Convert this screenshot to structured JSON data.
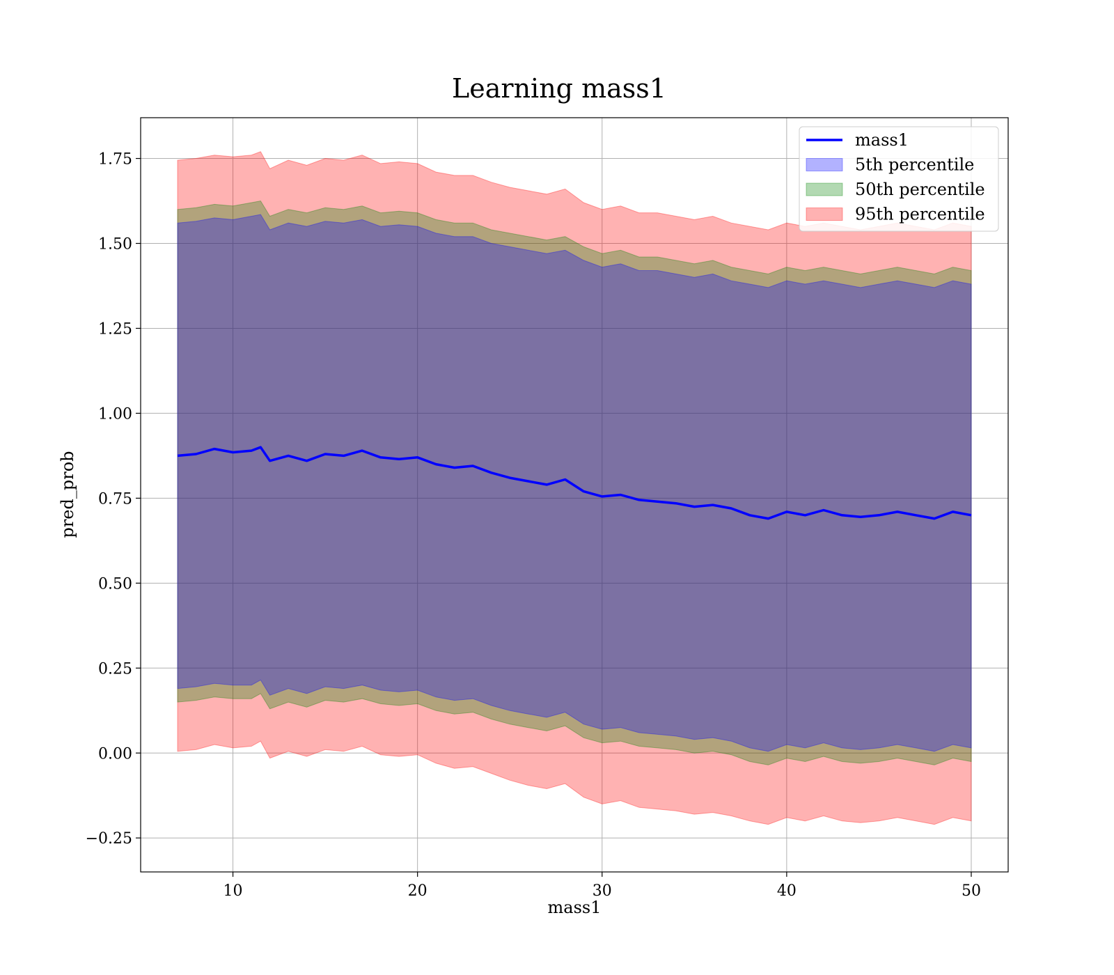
{
  "chart_data": {
    "type": "area",
    "title": "Learning mass1",
    "xlabel": "mass1",
    "ylabel": "pred_prob",
    "xlim": [
      5,
      52
    ],
    "ylim": [
      -0.35,
      1.87
    ],
    "x_ticks": [
      10,
      20,
      30,
      40,
      50
    ],
    "x_tick_labels": [
      "10",
      "20",
      "30",
      "40",
      "50"
    ],
    "y_ticks": [
      -0.25,
      0.0,
      0.25,
      0.5,
      0.75,
      1.0,
      1.25,
      1.5,
      1.75
    ],
    "y_tick_labels": [
      "−0.25",
      "0.00",
      "0.25",
      "0.50",
      "0.75",
      "1.00",
      "1.25",
      "1.50",
      "1.75"
    ],
    "grid": true,
    "legend_position": "top-right",
    "x": [
      7,
      8,
      9,
      10,
      11,
      11.5,
      12,
      13,
      14,
      15,
      16,
      17,
      18,
      19,
      20,
      21,
      22,
      23,
      24,
      25,
      26,
      27,
      28,
      29,
      30,
      31,
      32,
      33,
      34,
      35,
      36,
      37,
      38,
      39,
      40,
      41,
      42,
      43,
      44,
      45,
      46,
      47,
      48,
      49,
      50
    ],
    "mean_line": {
      "name": "mass1",
      "color": "#0000ff",
      "values": [
        0.875,
        0.88,
        0.895,
        0.885,
        0.89,
        0.9,
        0.86,
        0.875,
        0.86,
        0.88,
        0.875,
        0.89,
        0.87,
        0.865,
        0.87,
        0.85,
        0.84,
        0.845,
        0.825,
        0.81,
        0.8,
        0.79,
        0.805,
        0.77,
        0.755,
        0.76,
        0.745,
        0.74,
        0.735,
        0.725,
        0.73,
        0.72,
        0.7,
        0.69,
        0.71,
        0.7,
        0.715,
        0.7,
        0.695,
        0.7,
        0.71,
        0.7,
        0.69,
        0.71,
        0.7
      ]
    },
    "series": [
      {
        "name": "5th percentile",
        "color": "#0000ff",
        "upper": [
          1.56,
          1.565,
          1.575,
          1.57,
          1.58,
          1.585,
          1.54,
          1.56,
          1.55,
          1.565,
          1.56,
          1.57,
          1.55,
          1.555,
          1.55,
          1.53,
          1.52,
          1.52,
          1.5,
          1.49,
          1.48,
          1.47,
          1.48,
          1.45,
          1.43,
          1.44,
          1.42,
          1.42,
          1.41,
          1.4,
          1.41,
          1.39,
          1.38,
          1.37,
          1.39,
          1.38,
          1.39,
          1.38,
          1.37,
          1.38,
          1.39,
          1.38,
          1.37,
          1.39,
          1.38
        ],
        "lower": [
          0.19,
          0.195,
          0.205,
          0.2,
          0.2,
          0.215,
          0.17,
          0.19,
          0.175,
          0.195,
          0.19,
          0.2,
          0.185,
          0.18,
          0.185,
          0.165,
          0.155,
          0.16,
          0.14,
          0.125,
          0.115,
          0.105,
          0.12,
          0.085,
          0.07,
          0.075,
          0.06,
          0.055,
          0.05,
          0.04,
          0.045,
          0.035,
          0.015,
          0.005,
          0.025,
          0.015,
          0.03,
          0.015,
          0.01,
          0.015,
          0.025,
          0.015,
          0.005,
          0.025,
          0.015
        ]
      },
      {
        "name": "50th percentile",
        "color": "#008000",
        "upper": [
          1.6,
          1.605,
          1.615,
          1.61,
          1.62,
          1.625,
          1.58,
          1.6,
          1.59,
          1.605,
          1.6,
          1.61,
          1.59,
          1.595,
          1.59,
          1.57,
          1.56,
          1.56,
          1.54,
          1.53,
          1.52,
          1.51,
          1.52,
          1.49,
          1.47,
          1.48,
          1.46,
          1.46,
          1.45,
          1.44,
          1.45,
          1.43,
          1.42,
          1.41,
          1.43,
          1.42,
          1.43,
          1.42,
          1.41,
          1.42,
          1.43,
          1.42,
          1.41,
          1.43,
          1.42
        ],
        "lower": [
          0.15,
          0.155,
          0.165,
          0.16,
          0.16,
          0.175,
          0.13,
          0.15,
          0.135,
          0.155,
          0.15,
          0.16,
          0.145,
          0.14,
          0.145,
          0.125,
          0.115,
          0.12,
          0.1,
          0.085,
          0.075,
          0.065,
          0.08,
          0.045,
          0.03,
          0.035,
          0.02,
          0.015,
          0.01,
          0.0,
          0.005,
          -0.005,
          -0.025,
          -0.035,
          -0.015,
          -0.025,
          -0.01,
          -0.025,
          -0.03,
          -0.025,
          -0.015,
          -0.025,
          -0.035,
          -0.015,
          -0.025
        ]
      },
      {
        "name": "95th percentile",
        "color": "#ff0000",
        "upper": [
          1.745,
          1.75,
          1.76,
          1.755,
          1.76,
          1.77,
          1.72,
          1.745,
          1.73,
          1.75,
          1.745,
          1.76,
          1.735,
          1.74,
          1.735,
          1.71,
          1.7,
          1.7,
          1.68,
          1.665,
          1.655,
          1.645,
          1.66,
          1.62,
          1.6,
          1.61,
          1.59,
          1.59,
          1.58,
          1.57,
          1.58,
          1.56,
          1.55,
          1.54,
          1.56,
          1.55,
          1.56,
          1.55,
          1.54,
          1.55,
          1.56,
          1.55,
          1.54,
          1.56,
          1.55
        ],
        "lower": [
          0.005,
          0.01,
          0.025,
          0.015,
          0.02,
          0.035,
          -0.015,
          0.005,
          -0.01,
          0.01,
          0.005,
          0.02,
          -0.005,
          -0.01,
          -0.005,
          -0.03,
          -0.045,
          -0.04,
          -0.06,
          -0.08,
          -0.095,
          -0.105,
          -0.09,
          -0.13,
          -0.15,
          -0.14,
          -0.16,
          -0.165,
          -0.17,
          -0.18,
          -0.175,
          -0.185,
          -0.2,
          -0.21,
          -0.19,
          -0.2,
          -0.185,
          -0.2,
          -0.205,
          -0.2,
          -0.19,
          -0.2,
          -0.21,
          -0.19,
          -0.2
        ]
      }
    ]
  }
}
